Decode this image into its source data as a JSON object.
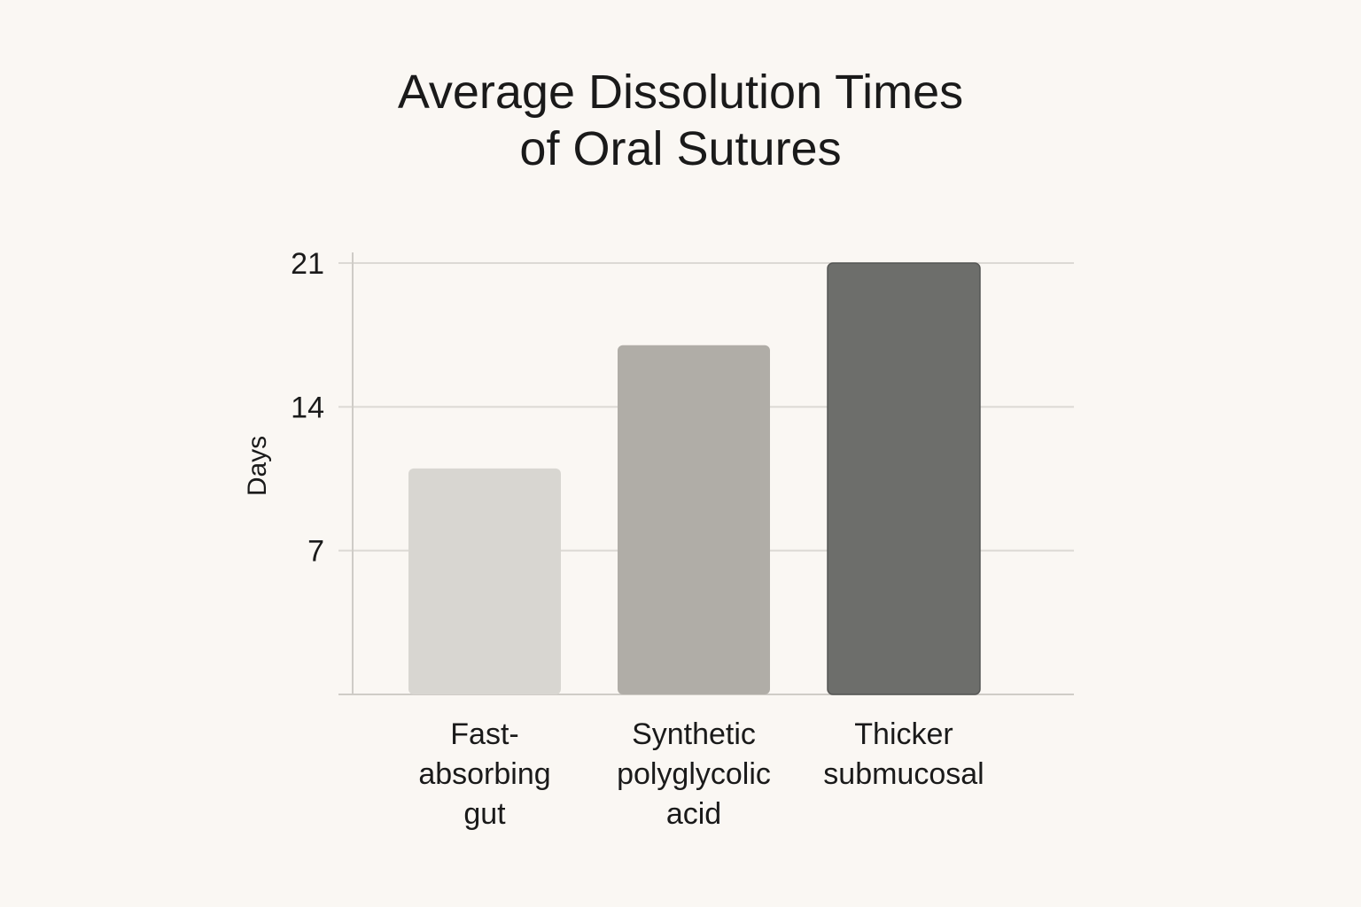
{
  "chart_data": {
    "type": "bar",
    "title": "Average Dissolution Times of Oral Sutures",
    "title_lines": [
      "Average Dissolution Times",
      "of Oral Sutures"
    ],
    "xlabel": "",
    "ylabel": "Days",
    "ylim": [
      0,
      21
    ],
    "yticks": [
      7,
      14,
      21
    ],
    "grid": true,
    "categories": [
      "Fast-absorbing gut",
      "Synthetic polyglycolic acid",
      "Thicker submucosal"
    ],
    "category_label_lines": [
      [
        "Fast-",
        "absorbing",
        "gut"
      ],
      [
        "Synthetic",
        "polyglycolic",
        "acid"
      ],
      [
        "Thicker",
        "submucosal"
      ]
    ],
    "values": [
      11,
      17,
      21
    ],
    "colors": [
      "#d8d6d1",
      "#b0ada7",
      "#6d6e6b"
    ]
  }
}
